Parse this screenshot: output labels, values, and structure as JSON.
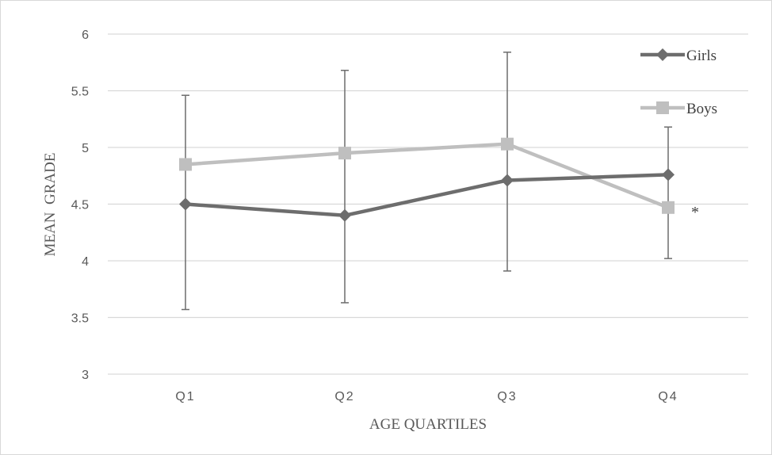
{
  "chart_data": {
    "type": "line",
    "title": "",
    "xlabel": "AGE QUARTILES",
    "ylabel": "MEAN  GRADE",
    "categories": [
      "Q1",
      "Q2",
      "Q3",
      "Q4"
    ],
    "ylim": [
      3,
      6
    ],
    "yticks": [
      3,
      3.5,
      4,
      4.5,
      5,
      5.5,
      6
    ],
    "ytick_labels": [
      "3",
      "3.5",
      "4",
      "4.5",
      "5",
      "5.5",
      "6"
    ],
    "grid": true,
    "legend_position": "top-right",
    "series": [
      {
        "name": "Girls",
        "values": [
          4.5,
          4.4,
          4.71,
          4.76
        ],
        "error_low": [
          3.57,
          3.63,
          3.91,
          4.02
        ],
        "error_high": [
          5.46,
          5.68,
          5.84,
          5.18
        ],
        "color": "#6d6d6d",
        "marker": "diamond"
      },
      {
        "name": "Boys",
        "values": [
          4.85,
          4.95,
          5.03,
          4.47
        ],
        "color": "#bfbfbf",
        "marker": "square"
      }
    ],
    "annotations": [
      {
        "category": "Q4",
        "series": "Boys",
        "text": "*"
      }
    ]
  }
}
